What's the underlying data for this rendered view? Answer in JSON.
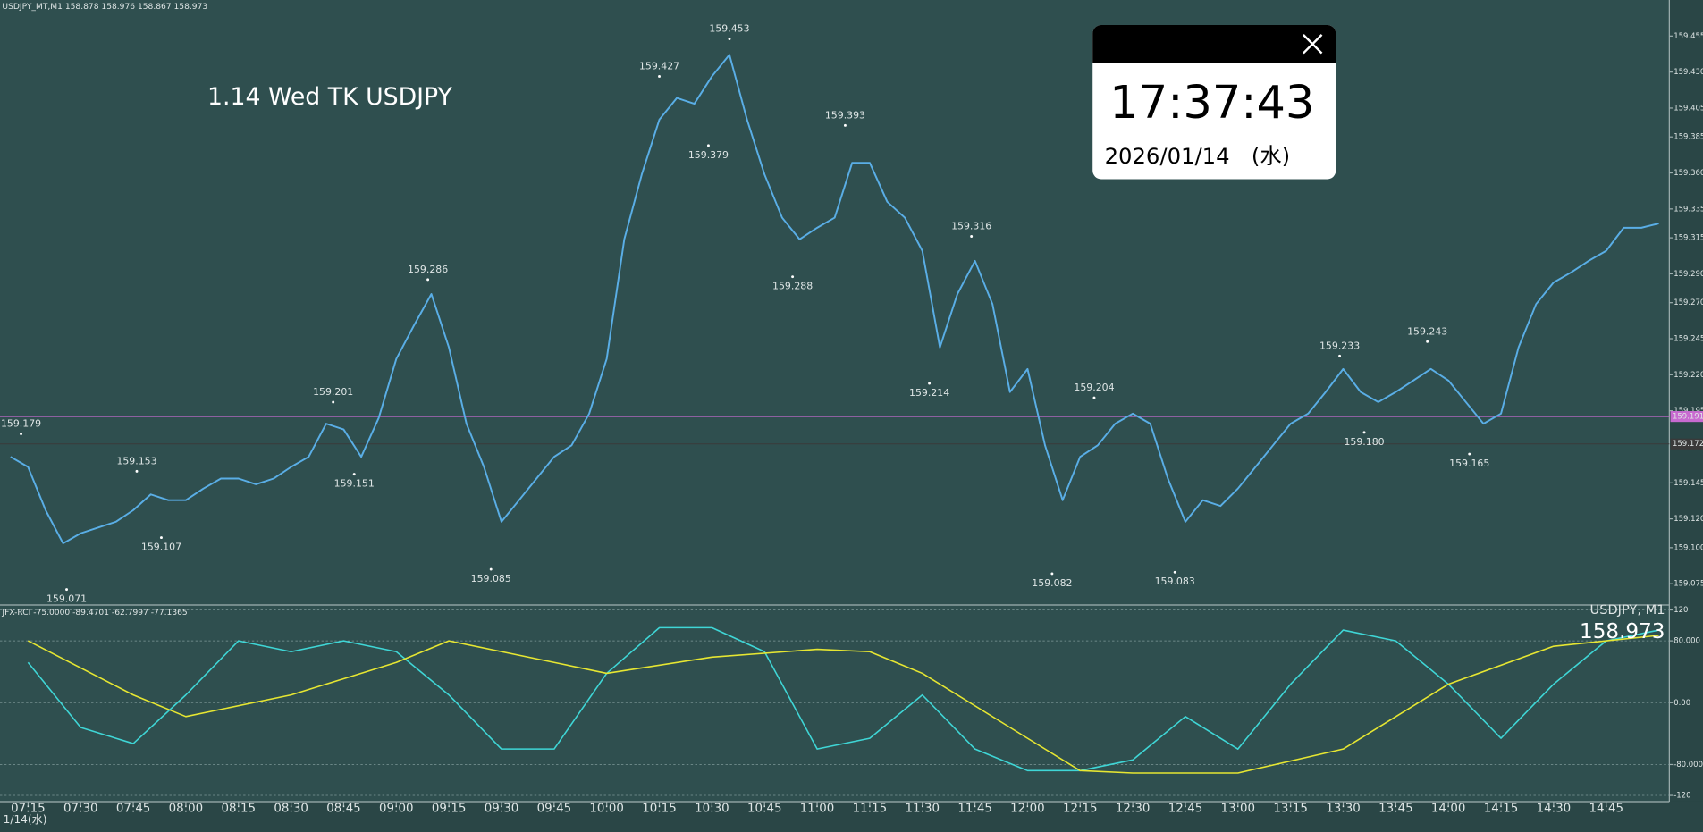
{
  "ui": {
    "symbol_info": "USDJPY_MT,M1  158.878 158.976 158.867 158.973",
    "overlay_title": "1.14 Wed TK USDJPY",
    "clock_time": "17:37:43",
    "clock_date": "2026/01/14　(水)",
    "date_label": "1/14(水)",
    "rci_info": "JFX-RCI -75.0000 -89.4701 -62.7997 -77.1365",
    "symbol_period": "USDJPY, M1",
    "last_price": "158.973"
  },
  "chart_data": [
    {
      "type": "line",
      "color": "#5aaee6",
      "xlim": [
        "07:07",
        "15:03"
      ],
      "ylim": [
        159.061,
        159.48
      ],
      "xticks": [
        "07:15",
        "07:30",
        "07:45",
        "08:00",
        "08:15",
        "08:30",
        "08:45",
        "09:00",
        "09:15",
        "09:30",
        "09:45",
        "10:00",
        "10:15",
        "10:30",
        "10:45",
        "11:00",
        "11:15",
        "11:30",
        "11:45",
        "12:00",
        "12:15",
        "12:30",
        "12:45",
        "13:00",
        "13:15",
        "13:30",
        "13:45",
        "14:00",
        "14:15",
        "14:30",
        "14:45"
      ],
      "yticks": [
        159.075,
        {
          "value": 159.1,
          "label": "159.100"
        },
        {
          "value": 159.12,
          "label": "159.120"
        },
        159.145,
        159.195,
        {
          "value": 159.22,
          "label": "159.220"
        },
        159.245,
        {
          "value": 159.27,
          "label": "159.270"
        },
        {
          "value": 159.29,
          "label": "159.290"
        },
        159.315,
        159.335,
        {
          "value": 159.36,
          "label": "159.360"
        },
        159.385,
        159.405,
        {
          "value": 159.43,
          "label": "159.430"
        },
        159.455
      ],
      "x": [
        "07:10",
        "07:15",
        "07:20",
        "07:25",
        "07:30",
        "07:35",
        "07:40",
        "07:45",
        "07:50",
        "07:55",
        "08:00",
        "08:05",
        "08:10",
        "08:15",
        "08:20",
        "08:25",
        "08:30",
        "08:35",
        "08:40",
        "08:45",
        "08:50",
        "08:55",
        "09:00",
        "09:05",
        "09:10",
        "09:15",
        "09:20",
        "09:25",
        "09:30",
        "09:35",
        "09:40",
        "09:45",
        "09:50",
        "09:55",
        "10:00",
        "10:05",
        "10:10",
        "10:15",
        "10:20",
        "10:25",
        "10:30",
        "10:35",
        "10:40",
        "10:45",
        "10:50",
        "10:55",
        "11:00",
        "11:05",
        "11:10",
        "11:15",
        "11:20",
        "11:25",
        "11:30",
        "11:35",
        "11:40",
        "11:45",
        "11:50",
        "11:55",
        "12:00",
        "12:05",
        "12:10",
        "12:15",
        "12:20",
        "12:25",
        "12:30",
        "12:35",
        "12:40",
        "12:45",
        "12:50",
        "12:55",
        "13:00",
        "13:05",
        "13:10",
        "13:15",
        "13:20",
        "13:25",
        "13:30",
        "13:35",
        "13:40",
        "13:45",
        "13:50",
        "13:55",
        "14:00",
        "14:05",
        "14:10",
        "14:15",
        "14:20",
        "14:25",
        "14:30",
        "14:35",
        "14:40",
        "14:45",
        "14:50",
        "14:55",
        "15:00"
      ],
      "values": [
        159.163,
        159.156,
        159.126,
        159.103,
        159.11,
        159.114,
        159.118,
        159.126,
        159.137,
        159.133,
        159.133,
        159.141,
        159.148,
        159.148,
        159.144,
        159.148,
        159.156,
        159.163,
        159.186,
        159.182,
        159.163,
        159.19,
        159.231,
        159.254,
        159.276,
        159.239,
        159.186,
        159.156,
        159.118,
        159.133,
        159.148,
        159.163,
        159.171,
        159.193,
        159.231,
        159.314,
        159.359,
        159.397,
        159.412,
        159.408,
        159.427,
        159.442,
        159.397,
        159.359,
        159.329,
        159.314,
        159.322,
        159.329,
        159.367,
        159.367,
        159.34,
        159.329,
        159.306,
        159.239,
        159.276,
        159.299,
        159.269,
        159.208,
        159.224,
        159.171,
        159.133,
        159.163,
        159.171,
        159.186,
        159.193,
        159.186,
        159.148,
        159.118,
        159.133,
        159.129,
        159.141,
        159.156,
        159.171,
        159.186,
        159.193,
        159.208,
        159.224,
        159.208,
        159.201,
        159.208,
        159.216,
        159.224,
        159.216,
        159.201,
        159.186,
        159.193,
        159.239,
        159.269,
        159.284,
        159.291,
        159.299,
        159.306,
        159.322,
        159.322,
        159.325
      ],
      "hlines": [
        {
          "value": 159.191,
          "color": "#c86ad0"
        },
        {
          "value": 159.172,
          "color": "#3a3a3a"
        }
      ],
      "annotations": [
        {
          "x": "07:13",
          "value": 159.179
        },
        {
          "x": "07:46",
          "value": 159.153
        },
        {
          "x": "07:53",
          "value": 159.107
        },
        {
          "x": "07:26",
          "value": 159.071
        },
        {
          "x": "08:42",
          "value": 159.201
        },
        {
          "x": "08:48",
          "value": 159.151
        },
        {
          "x": "09:09",
          "value": 159.286
        },
        {
          "x": "09:27",
          "value": 159.085
        },
        {
          "x": "10:15",
          "value": 159.427
        },
        {
          "x": "10:35",
          "value": 159.453
        },
        {
          "x": "10:29",
          "value": 159.379
        },
        {
          "x": "11:08",
          "value": 159.393
        },
        {
          "x": "10:53",
          "value": 159.288
        },
        {
          "x": "11:44",
          "value": 159.316
        },
        {
          "x": "11:32",
          "value": 159.214
        },
        {
          "x": "12:19",
          "value": 159.204
        },
        {
          "x": "12:07",
          "value": 159.082
        },
        {
          "x": "12:42",
          "value": 159.083
        },
        {
          "x": "13:29",
          "value": 159.233
        },
        {
          "x": "13:54",
          "value": 159.243
        },
        {
          "x": "13:36",
          "value": 159.18,
          "label": "159.180"
        },
        {
          "x": "14:06",
          "value": 159.165
        }
      ]
    },
    {
      "type": "line",
      "xlim": [
        "07:07",
        "15:03"
      ],
      "ylim": [
        -128,
        125
      ],
      "yticks": [
        120,
        {
          "value": 80,
          "label": "80.000"
        },
        {
          "value": 0,
          "label": "0.00"
        },
        {
          "value": -80,
          "label": "-80.000"
        },
        -120
      ],
      "series": [
        {
          "color": "#3fd6d6",
          "x": [
            "07:15",
            "07:30",
            "07:45",
            "08:00",
            "08:15",
            "08:30",
            "08:45",
            "09:00",
            "09:15",
            "09:30",
            "09:45",
            "10:00",
            "10:15",
            "10:30",
            "10:45",
            "11:00",
            "11:15",
            "11:30",
            "11:45",
            "12:00",
            "12:15",
            "12:30",
            "12:45",
            "13:00",
            "13:15",
            "13:30",
            "13:45",
            "14:00",
            "14:15",
            "14:30",
            "14:45",
            "15:00"
          ],
          "values": [
            52,
            -32,
            -53,
            10,
            80,
            66,
            80,
            66,
            10,
            -60,
            -60,
            38,
            97,
            97,
            66,
            -60,
            -46,
            10,
            -60,
            -88,
            -88,
            -74,
            -18,
            -60,
            24,
            94,
            80,
            24,
            -46,
            24,
            80,
            94
          ]
        },
        {
          "color": "#e6e632",
          "x": [
            "07:15",
            "07:45",
            "08:00",
            "08:30",
            "09:00",
            "09:15",
            "09:45",
            "10:00",
            "10:30",
            "11:00",
            "11:15",
            "11:30",
            "12:00",
            "12:15",
            "12:30",
            "13:00",
            "13:30",
            "14:00",
            "14:30",
            "15:00"
          ],
          "values": [
            80,
            10,
            -18,
            10,
            52,
            80,
            52,
            38,
            59,
            69,
            66,
            38,
            -46,
            -88,
            -91,
            -91,
            -60,
            24,
            73,
            87
          ]
        }
      ]
    }
  ]
}
